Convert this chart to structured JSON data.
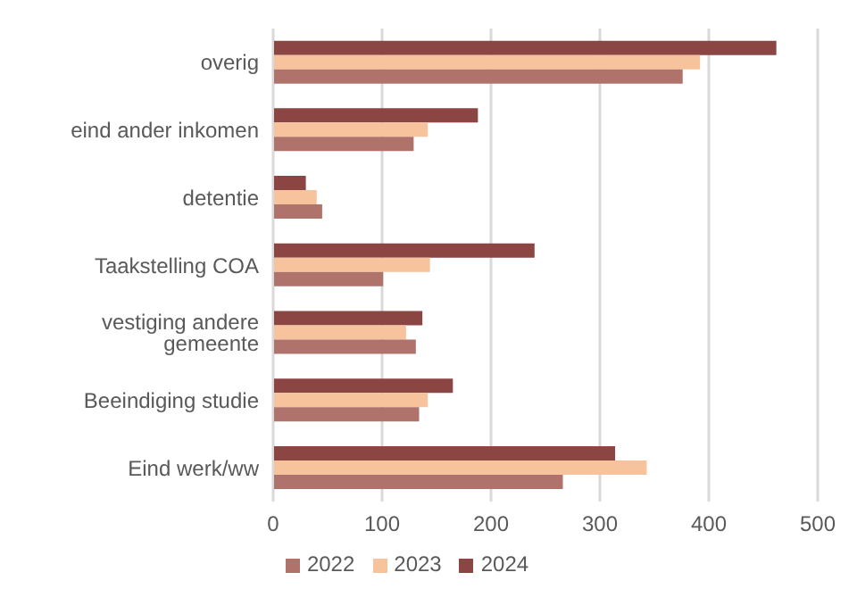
{
  "chart_data": {
    "type": "bar",
    "orientation": "horizontal",
    "categories": [
      "overig",
      "eind ander inkomen",
      "detentie",
      "Taakstelling COA",
      "vestiging andere gemeente",
      "Beeindiging studie",
      "Eind werk/ww"
    ],
    "series": [
      {
        "name": "2024",
        "color": "#8b4543",
        "values": [
          462,
          188,
          30,
          240,
          137,
          165,
          314
        ]
      },
      {
        "name": "2023",
        "color": "#f7c39d",
        "values": [
          392,
          142,
          40,
          144,
          122,
          142,
          343
        ]
      },
      {
        "name": "2022",
        "color": "#b0736b",
        "values": [
          376,
          129,
          45,
          101,
          131,
          134,
          266
        ]
      }
    ],
    "xlim": [
      0,
      500
    ],
    "xticks": [
      0,
      100,
      200,
      300,
      400,
      500
    ],
    "grid": "x",
    "legend": "bottom"
  }
}
